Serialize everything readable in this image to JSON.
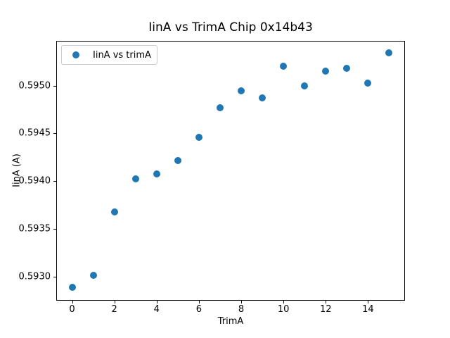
{
  "title": "IinA vs TrimA Chip 0x14b43",
  "legend": {
    "label": "IinA vs trimA"
  },
  "colors": {
    "marker": "#1f77b4",
    "spine": "#000000",
    "legend_border": "#cccccc"
  },
  "chart_data": {
    "type": "scatter",
    "title": "IinA vs TrimA Chip 0x14b43",
    "xlabel": "TrimA",
    "ylabel": "IinA (A)",
    "legend_label": "IinA vs trimA",
    "legend_position": "upper left",
    "grid": false,
    "marker_color": "#1f77b4",
    "x": [
      0,
      1,
      2,
      3,
      4,
      5,
      6,
      7,
      8,
      9,
      10,
      11,
      12,
      13,
      14,
      15
    ],
    "y": [
      0.592885,
      0.593015,
      0.593676,
      0.594021,
      0.594075,
      0.594213,
      0.594459,
      0.594767,
      0.594946,
      0.594872,
      0.595207,
      0.594996,
      0.595155,
      0.59518,
      0.595025,
      0.595345
    ],
    "xlim": [
      -0.75,
      15.75
    ],
    "ylim": [
      0.592745,
      0.595473
    ],
    "xticks": [
      0,
      2,
      4,
      6,
      8,
      10,
      12,
      14
    ],
    "xtick_labels": [
      "0",
      "2",
      "4",
      "6",
      "8",
      "10",
      "12",
      "14"
    ],
    "yticks": [
      0.593,
      0.5935,
      0.594,
      0.5945,
      0.595
    ],
    "ytick_labels": [
      "0.5930",
      "0.5935",
      "0.5940",
      "0.5945",
      "0.5950"
    ]
  }
}
